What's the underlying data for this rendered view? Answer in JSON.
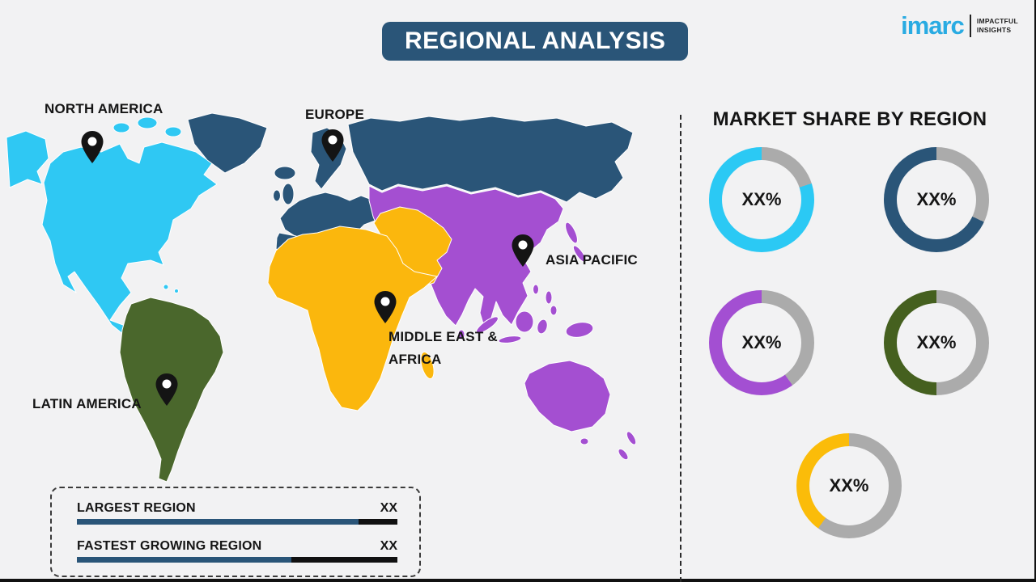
{
  "header": {
    "title": "REGIONAL ANALYSIS"
  },
  "logo": {
    "brand": "imarc",
    "brand_color": "#29abe2",
    "tagline_line1": "IMPACTFUL",
    "tagline_line2": "INSIGHTS"
  },
  "map": {
    "regions": [
      {
        "id": "na",
        "name": "North America",
        "color": "#2fc8f3"
      },
      {
        "id": "eu",
        "name": "Europe",
        "color": "#2a5578"
      },
      {
        "id": "ap",
        "name": "Asia Pacific",
        "color": "#a44fd1"
      },
      {
        "id": "mea",
        "name": "Middle East & Africa",
        "color": "#fbb70d"
      },
      {
        "id": "la",
        "name": "Latin America",
        "color": "#4a672c"
      }
    ],
    "labels": [
      {
        "id": "north-america",
        "text": "NORTH AMERICA"
      },
      {
        "id": "europe",
        "text": "EUROPE"
      },
      {
        "id": "asia-pacific",
        "text": "ASIA PACIFIC"
      },
      {
        "id": "middle-east-africa",
        "line1": "MIDDLE EAST &",
        "line2": "AFRICA"
      },
      {
        "id": "latin-america",
        "text": "LATIN AMERICA"
      }
    ]
  },
  "right_panel": {
    "heading": "MARKET SHARE BY REGION"
  },
  "chart_data": {
    "type": "donut",
    "title": "MARKET SHARE BY REGION",
    "track_color": "#ababab",
    "layout": "2 columns, 5 donuts, last centered",
    "charts": [
      {
        "color_name": "cyan",
        "color": "#2bc9f4",
        "value_label": "XX%",
        "arc_pct": 80
      },
      {
        "color_name": "dark-blue",
        "color": "#2a5578",
        "value_label": "XX%",
        "arc_pct": 68
      },
      {
        "color_name": "purple",
        "color": "#a34fd2",
        "value_label": "XX%",
        "arc_pct": 60
      },
      {
        "color_name": "dark-green",
        "color": "#45601f",
        "value_label": "XX%",
        "arc_pct": 50
      },
      {
        "color_name": "yellow",
        "color": "#fbbc09",
        "value_label": "XX%",
        "arc_pct": 40
      }
    ]
  },
  "legend": {
    "bar_color": "#2a5578",
    "bar_rest_color": "#111111",
    "rows": [
      {
        "label": "LARGEST REGION",
        "value": "XX",
        "fill_pct": 88
      },
      {
        "label": "FASTEST GROWING REGION",
        "value": "XX",
        "fill_pct": 67
      }
    ]
  }
}
